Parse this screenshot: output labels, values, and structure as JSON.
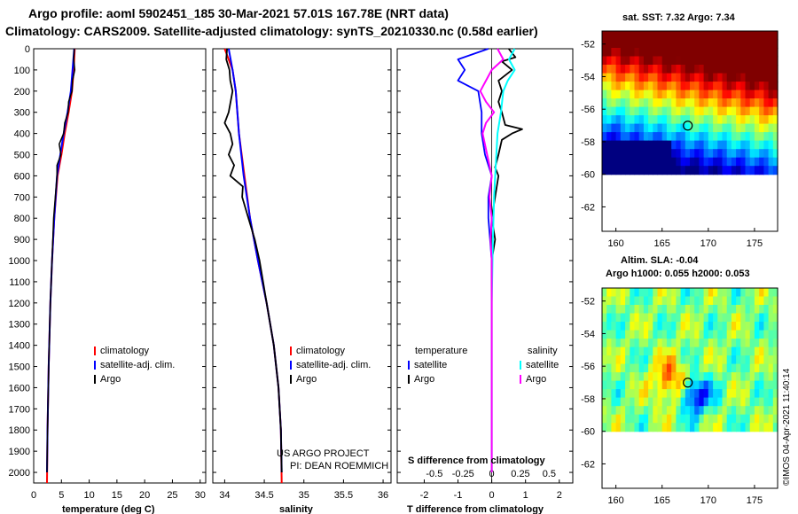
{
  "figure": {
    "title_line1": "Argo profile: aoml 5902451_185 30-Mar-2021 57.01S 167.78E (NRT data)",
    "title_line2": "Climatology: CARS2009. Satellite-adjusted climatology: synTS_20210330.nc (0.58d earlier)",
    "credit": "©IMOS 04-Apr-2021 11:40:14",
    "project_line1": "US ARGO PROJECT",
    "project_line2": "PI: DEAN ROEMMICH"
  },
  "colors": {
    "climatology": "#ff0000",
    "satellite": "#0000ff",
    "argo": "#000000",
    "sal_satellite": "#00ffff",
    "sal_argo": "#ff00ff"
  },
  "chart_data": [
    {
      "type": "line",
      "name": "temperature",
      "xlabel": "temperature (deg C)",
      "xlim": [
        0,
        31
      ],
      "xticks": [
        "0",
        "5",
        "10",
        "15",
        "20",
        "25",
        "30"
      ],
      "ylim": [
        0,
        2050
      ],
      "yticks": [
        "0",
        "100",
        "200",
        "300",
        "400",
        "500",
        "600",
        "700",
        "800",
        "900",
        "1000",
        "1100",
        "1200",
        "1300",
        "1400",
        "1500",
        "1600",
        "1700",
        "1800",
        "1900",
        "2000"
      ],
      "legend": [
        "climatology",
        "satellite-adj. clim.",
        "Argo"
      ],
      "series": [
        {
          "name": "climatology",
          "depth": [
            0,
            100,
            200,
            300,
            400,
            500,
            600,
            800,
            1000,
            1200,
            1500,
            1800,
            2050
          ],
          "values": [
            7.4,
            7.2,
            6.9,
            6.3,
            5.6,
            5.0,
            4.3,
            3.7,
            3.3,
            3.0,
            2.7,
            2.5,
            2.4
          ]
        },
        {
          "name": "satellite-adj. clim.",
          "depth": [
            0,
            100,
            200,
            300,
            400,
            500,
            600,
            800,
            1000,
            1200,
            1500,
            1800,
            2000
          ],
          "values": [
            7.3,
            7.0,
            6.7,
            6.1,
            5.4,
            4.8,
            4.2,
            3.7,
            3.3,
            3.0,
            2.7,
            2.5,
            2.4
          ]
        },
        {
          "name": "Argo",
          "depth": [
            0,
            50,
            100,
            150,
            200,
            250,
            300,
            350,
            400,
            450,
            500,
            550,
            600,
            700,
            800,
            1000,
            1200,
            1500,
            1800,
            2000
          ],
          "values": [
            7.3,
            7.2,
            7.4,
            7.0,
            6.9,
            6.3,
            6.2,
            5.6,
            5.4,
            4.6,
            4.9,
            4.2,
            4.2,
            3.9,
            3.6,
            3.3,
            3.0,
            2.7,
            2.5,
            2.4
          ]
        }
      ]
    },
    {
      "type": "line",
      "name": "salinity",
      "xlabel": "salinity",
      "xlim": [
        33.85,
        36.1
      ],
      "xticks": [
        "34",
        "34.5",
        "35",
        "35.5",
        "36"
      ],
      "ylim": [
        0,
        2050
      ],
      "legend": [
        "climatology",
        "satellite-adj. clim.",
        "Argo"
      ],
      "series": [
        {
          "name": "climatology",
          "depth": [
            0,
            100,
            200,
            400,
            600,
            800,
            1000,
            1200,
            1400,
            1600,
            1800,
            2050
          ],
          "values": [
            34.0,
            34.1,
            34.14,
            34.18,
            34.25,
            34.32,
            34.42,
            34.53,
            34.62,
            34.68,
            34.71,
            34.72
          ]
        },
        {
          "name": "satellite-adj. clim.",
          "depth": [
            0,
            100,
            200,
            400,
            600,
            800,
            1000,
            1200,
            1400,
            1600,
            1800,
            2000
          ],
          "values": [
            34.05,
            34.1,
            34.14,
            34.18,
            34.24,
            34.32,
            34.42,
            34.53,
            34.62,
            34.68,
            34.71,
            34.72
          ]
        },
        {
          "name": "Argo",
          "depth": [
            0,
            50,
            100,
            150,
            200,
            300,
            350,
            400,
            450,
            500,
            550,
            600,
            650,
            700,
            800,
            900,
            1000,
            1200,
            1400,
            1600,
            1800,
            2000
          ],
          "values": [
            34.03,
            34.02,
            34.06,
            34.07,
            34.1,
            34.05,
            34.0,
            34.07,
            34.1,
            34.05,
            34.12,
            34.07,
            34.23,
            34.22,
            34.3,
            34.38,
            34.44,
            34.53,
            34.62,
            34.68,
            34.71,
            34.72
          ]
        }
      ]
    },
    {
      "type": "line",
      "name": "difference",
      "xlabel": "T difference from climatology",
      "xlabel2": "S difference from climatology",
      "xlim": [
        -2.8,
        2.4
      ],
      "xticks": [
        "-2",
        "-1",
        "0",
        "1",
        "2"
      ],
      "xticks2": [
        "-0.5",
        "-0.25",
        "0",
        "0.25",
        "0.5"
      ],
      "ylim": [
        0,
        2050
      ],
      "legend_temperature_title": "temperature",
      "legend_salinity_title": "salinity",
      "legend_left": [
        "satellite",
        "Argo"
      ],
      "legend_right": [
        "satellite",
        "Argo"
      ],
      "series": [
        {
          "name": "T satellite",
          "depth": [
            0,
            50,
            100,
            150,
            200,
            300,
            400,
            500,
            600,
            700,
            800,
            1000,
            1400,
            2000
          ],
          "values": [
            -0.1,
            -1.0,
            -0.8,
            -1.0,
            -0.4,
            -0.3,
            -0.3,
            -0.2,
            0.0,
            -0.1,
            -0.1,
            0.0,
            0.0,
            0.0
          ]
        },
        {
          "name": "T Argo",
          "depth": [
            0,
            40,
            60,
            100,
            150,
            200,
            250,
            300,
            360,
            380,
            400,
            430,
            500,
            560,
            600,
            700,
            800,
            900,
            1000,
            1200,
            1500,
            2000
          ],
          "values": [
            0.5,
            0.7,
            0.3,
            0.6,
            0.2,
            0.3,
            0.2,
            0.3,
            0.4,
            0.9,
            0.6,
            0.3,
            0.2,
            0.1,
            0.2,
            0.1,
            0.0,
            0.1,
            0.0,
            0.0,
            0.0,
            0.0
          ]
        },
        {
          "name": "S satellite",
          "depth": [
            0,
            50,
            100,
            150,
            200,
            300,
            400,
            500,
            700,
            900,
            1200,
            1500,
            2000
          ],
          "values": [
            0.2,
            0.15,
            0.2,
            0.14,
            0.1,
            0.08,
            0.05,
            0.04,
            0.02,
            0.01,
            0.0,
            0.0,
            0.0
          ]
        },
        {
          "name": "S Argo",
          "depth": [
            0,
            50,
            100,
            200,
            250,
            300,
            350,
            400,
            500,
            600,
            700,
            800,
            900,
            1000,
            1200,
            1500,
            2000
          ],
          "values": [
            0.05,
            0.1,
            0.0,
            -0.1,
            -0.05,
            0.02,
            -0.05,
            -0.08,
            -0.04,
            0.0,
            -0.02,
            0.0,
            -0.01,
            0.0,
            0.0,
            0.0,
            0.0
          ]
        }
      ]
    },
    {
      "type": "heatmap",
      "name": "sst_map",
      "title": "sat. SST: 7.32 Argo: 7.34",
      "xlim": [
        158.5,
        177.5
      ],
      "ylim": [
        -63.5,
        -51.2
      ],
      "xticks": [
        "160",
        "165",
        "170",
        "175"
      ],
      "yticks": [
        "-52",
        "-54",
        "-56",
        "-58",
        "-60",
        "-62"
      ],
      "data_ylim": [
        -60,
        -51.2
      ],
      "float": {
        "lon": 167.78,
        "lat": -57.01
      }
    },
    {
      "type": "heatmap",
      "name": "sla_map",
      "title1": "Altim. SLA: -0.04",
      "title2": "Argo h1000: 0.055 h2000: 0.053",
      "xlim": [
        158.5,
        177.5
      ],
      "ylim": [
        -63.5,
        -51.2
      ],
      "xticks": [
        "160",
        "165",
        "170",
        "175"
      ],
      "yticks": [
        "-52",
        "-54",
        "-56",
        "-58",
        "-60",
        "-62"
      ],
      "data_ylim": [
        -60,
        -51.2
      ],
      "float": {
        "lon": 167.78,
        "lat": -57.01
      }
    }
  ]
}
